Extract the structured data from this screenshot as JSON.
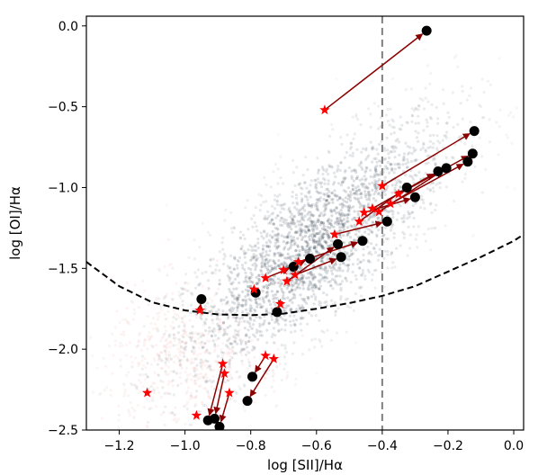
{
  "chart_data": {
    "type": "scatter",
    "title": "",
    "xlabel": "log [SII]/Hα",
    "ylabel": "log [OI]/Hα",
    "xlim": [
      -1.3,
      0.03
    ],
    "ylim": [
      -2.5,
      0.06
    ],
    "xticks": [
      -1.2,
      -1.0,
      -0.8,
      -0.6,
      -0.4,
      -0.2,
      0.0
    ],
    "xtick_labels": [
      "−1.2",
      "−1.0",
      "−0.8",
      "−0.6",
      "−0.4",
      "−0.2",
      "0.0"
    ],
    "yticks": [
      -2.5,
      -2.0,
      -1.5,
      -1.0,
      -0.5,
      0.0
    ],
    "ytick_labels": [
      "−2.5",
      "−2.0",
      "−1.5",
      "−1.0",
      "−0.5",
      "0.0"
    ],
    "grid": false,
    "vertical_line": {
      "x": -0.4,
      "style": "dashed",
      "color": "#808080"
    },
    "demarcation_curve": {
      "style": "dashed",
      "color": "#000000",
      "x": [
        -1.3,
        -1.2,
        -1.1,
        -1.0,
        -0.9,
        -0.8,
        -0.7,
        -0.6,
        -0.5,
        -0.4,
        -0.3,
        -0.2,
        -0.1,
        0.0,
        0.03
      ],
      "y": [
        -1.46,
        -1.61,
        -1.71,
        -1.76,
        -1.785,
        -1.79,
        -1.78,
        -1.75,
        -1.715,
        -1.67,
        -1.61,
        -1.52,
        -1.43,
        -1.33,
        -1.29
      ]
    },
    "background_density": {
      "description_colors": {
        "dense": "#2b3a4a",
        "low_sii": "#e06060"
      }
    },
    "pairs": [
      {
        "from": [
          -0.575,
          -0.52
        ],
        "to": [
          -0.265,
          -0.03
        ]
      },
      {
        "from": [
          -0.955,
          -1.76
        ],
        "to": [
          -0.95,
          -1.69
        ]
      },
      {
        "from": [
          -0.79,
          -1.63
        ],
        "to": [
          -0.785,
          -1.65
        ]
      },
      {
        "from": [
          -0.71,
          -1.72
        ],
        "to": [
          -0.72,
          -1.77
        ]
      },
      {
        "from": [
          -0.755,
          -1.56
        ],
        "to": [
          -0.67,
          -1.49
        ]
      },
      {
        "from": [
          -0.7,
          -1.51
        ],
        "to": [
          -0.62,
          -1.44
        ]
      },
      {
        "from": [
          -0.69,
          -1.58
        ],
        "to": [
          -0.535,
          -1.35
        ]
      },
      {
        "from": [
          -0.665,
          -1.54
        ],
        "to": [
          -0.525,
          -1.43
        ]
      },
      {
        "from": [
          -0.655,
          -1.46
        ],
        "to": [
          -0.46,
          -1.33
        ]
      },
      {
        "from": [
          -0.545,
          -1.29
        ],
        "to": [
          -0.385,
          -1.21
        ]
      },
      {
        "from": [
          -0.47,
          -1.21
        ],
        "to": [
          -0.325,
          -1.0
        ]
      },
      {
        "from": [
          -0.455,
          -1.155
        ],
        "to": [
          -0.3,
          -1.06
        ]
      },
      {
        "from": [
          -0.43,
          -1.13
        ],
        "to": [
          -0.23,
          -0.9
        ]
      },
      {
        "from": [
          -0.41,
          -1.15
        ],
        "to": [
          -0.205,
          -0.88
        ]
      },
      {
        "from": [
          -0.4,
          -0.99
        ],
        "to": [
          -0.12,
          -0.65
        ]
      },
      {
        "from": [
          -0.375,
          -1.1
        ],
        "to": [
          -0.14,
          -0.84
        ]
      },
      {
        "from": [
          -0.35,
          -1.04
        ],
        "to": [
          -0.125,
          -0.79
        ]
      },
      {
        "from": [
          -0.755,
          -2.04
        ],
        "to": [
          -0.795,
          -2.17
        ]
      },
      {
        "from": [
          -0.73,
          -2.06
        ],
        "to": [
          -0.81,
          -2.32
        ]
      },
      {
        "from": [
          -0.885,
          -2.09
        ],
        "to": [
          -0.93,
          -2.44
        ]
      },
      {
        "from": [
          -0.88,
          -2.15
        ],
        "to": [
          -0.91,
          -2.43
        ]
      },
      {
        "from": [
          -0.865,
          -2.27
        ],
        "to": [
          -0.895,
          -2.48
        ]
      }
    ],
    "lone_stars": [
      [
        -1.115,
        -2.27
      ],
      [
        -0.965,
        -2.41
      ]
    ],
    "colors": {
      "star": "#ff0000",
      "arrow": "#8b0000",
      "dot": "#000000"
    }
  }
}
